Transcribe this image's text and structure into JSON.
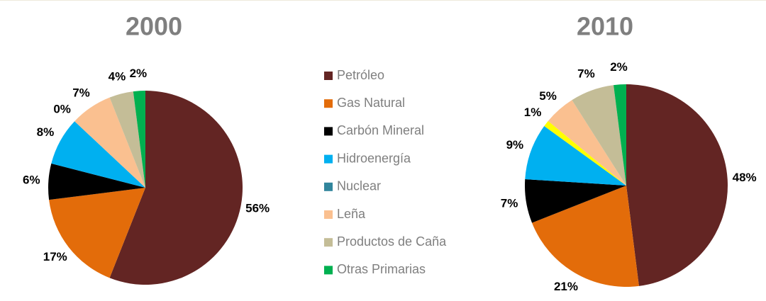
{
  "chart_data": [
    {
      "type": "pie",
      "title": "2000",
      "categories": [
        "Petróleo",
        "Gas Natural",
        "Carbón Mineral",
        "Hidroenergía",
        "Nuclear",
        "Leña",
        "Productos de Caña",
        "Otras Primarias"
      ],
      "values": [
        56,
        17,
        6,
        8,
        0,
        7,
        4,
        2
      ],
      "value_labels": [
        "56%",
        "17%",
        "6%",
        "8%",
        "0%",
        "7%",
        "4%",
        "2%"
      ],
      "colors": [
        "#632523",
        "#e36c0a",
        "#000000",
        "#00b0f0",
        "#31859c",
        "#fac090",
        "#c4bd97",
        "#00b050"
      ]
    },
    {
      "type": "pie",
      "title": "2010",
      "categories": [
        "Petróleo",
        "Gas Natural",
        "Carbón Mineral",
        "Hidroenergía",
        "Nuclear",
        "Leña",
        "Productos de Caña",
        "Otras Primarias"
      ],
      "values": [
        48,
        21,
        7,
        9,
        1,
        5,
        7,
        2
      ],
      "value_labels": [
        "48%",
        "21%",
        "7%",
        "9%",
        "1%",
        "5%",
        "7%",
        "2%"
      ],
      "colors": [
        "#632523",
        "#e36c0a",
        "#000000",
        "#00b0f0",
        "#ffff00",
        "#fac090",
        "#c4bd97",
        "#00b050"
      ]
    }
  ]
}
